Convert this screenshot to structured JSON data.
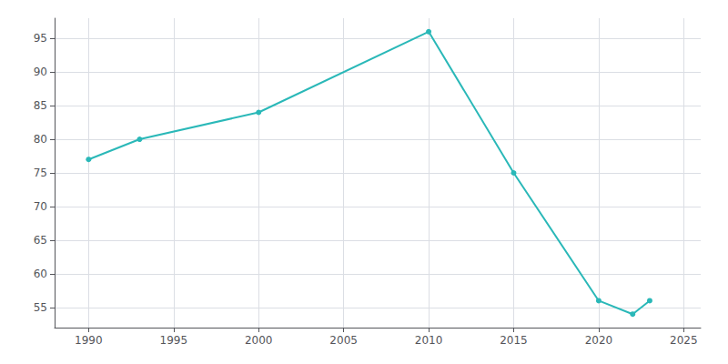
{
  "chart_data": {
    "type": "line",
    "x": [
      1990,
      1993,
      2000,
      2010,
      2015,
      2020,
      2022,
      2023
    ],
    "values": [
      77,
      80,
      84,
      96,
      75,
      56,
      54,
      56
    ],
    "color": "#2ab8b8",
    "marker": "circle",
    "xlim": [
      1988,
      2026
    ],
    "ylim": [
      52,
      98
    ],
    "xticks": [
      1990,
      1995,
      2000,
      2005,
      2010,
      2015,
      2020,
      2025
    ],
    "yticks": [
      55,
      60,
      65,
      70,
      75,
      80,
      85,
      90,
      95
    ],
    "grid": true
  }
}
